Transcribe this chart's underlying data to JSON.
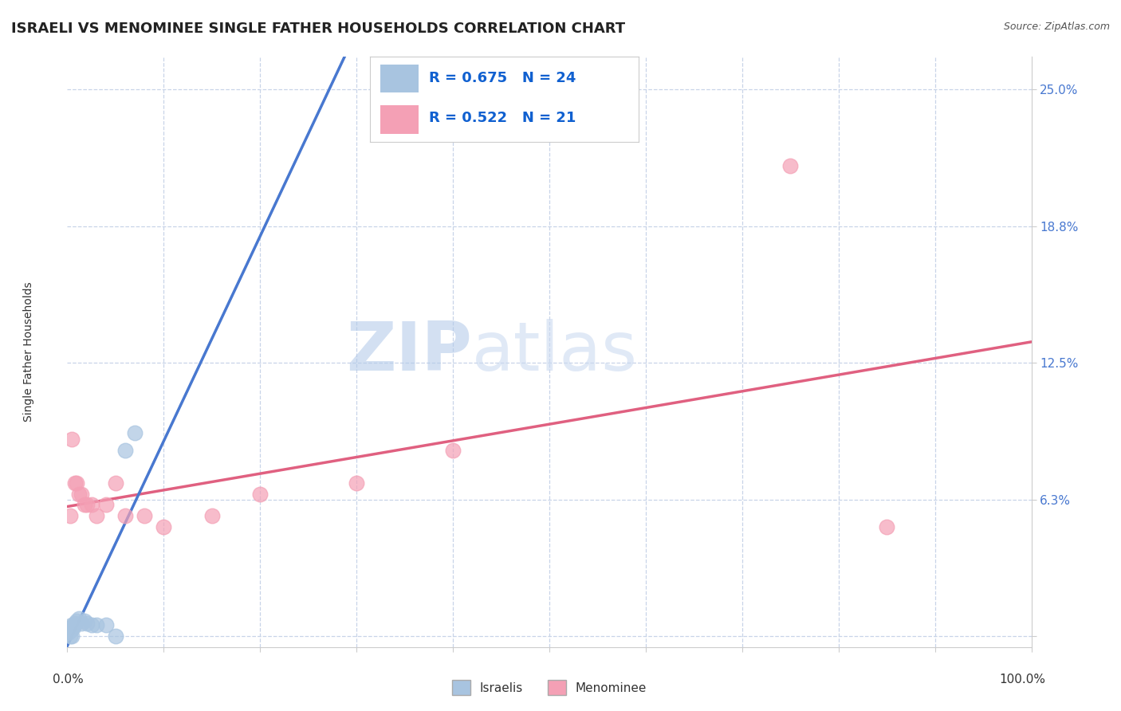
{
  "title": "ISRAELI VS MENOMINEE SINGLE FATHER HOUSEHOLDS CORRELATION CHART",
  "source": "Source: ZipAtlas.com",
  "ylabel": "Single Father Households",
  "ytick_vals": [
    0.0,
    0.0625,
    0.125,
    0.1875,
    0.25
  ],
  "ytick_labels": [
    "",
    "6.3%",
    "12.5%",
    "18.8%",
    "25.0%"
  ],
  "xmin": 0.0,
  "xmax": 100.0,
  "ymin": -0.005,
  "ymax": 0.265,
  "legend_r_israeli": "R = 0.675",
  "legend_n_israeli": "N = 24",
  "legend_r_menominee": "R = 0.522",
  "legend_n_menominee": "N = 21",
  "israeli_color": "#a8c4e0",
  "menominee_color": "#f4a0b5",
  "israeli_line_color": "#4878d0",
  "menominee_line_color": "#e06080",
  "israeli_dash_color": "#aaaaaa",
  "watermark_zip": "ZIP",
  "watermark_atlas": "atlas",
  "watermark_color": "#c8d8f0",
  "background_color": "#ffffff",
  "grid_color": "#c8d4e8",
  "title_fontsize": 13,
  "axis_label_fontsize": 10,
  "tick_fontsize": 11,
  "legend_fontsize": 13,
  "israeli_x": [
    0.1,
    0.15,
    0.2,
    0.25,
    0.3,
    0.35,
    0.4,
    0.5,
    0.6,
    0.7,
    0.8,
    1.0,
    1.2,
    1.5,
    1.8,
    2.0,
    2.5,
    3.0,
    4.0,
    5.0,
    6.0,
    7.0,
    0.3,
    0.5
  ],
  "israeli_y": [
    0.002,
    0.002,
    0.003,
    0.003,
    0.004,
    0.003,
    0.003,
    0.005,
    0.004,
    0.005,
    0.006,
    0.007,
    0.008,
    0.006,
    0.007,
    0.006,
    0.005,
    0.005,
    0.005,
    0.0,
    0.085,
    0.093,
    0.0,
    0.0
  ],
  "menominee_x": [
    0.3,
    0.5,
    0.8,
    1.0,
    1.2,
    1.5,
    1.8,
    2.0,
    2.5,
    3.0,
    4.0,
    5.0,
    6.0,
    8.0,
    10.0,
    15.0,
    20.0,
    30.0,
    40.0,
    75.0,
    85.0
  ],
  "menominee_y": [
    0.055,
    0.09,
    0.07,
    0.07,
    0.065,
    0.065,
    0.06,
    0.06,
    0.06,
    0.055,
    0.06,
    0.07,
    0.055,
    0.055,
    0.05,
    0.055,
    0.065,
    0.07,
    0.085,
    0.215,
    0.05
  ]
}
